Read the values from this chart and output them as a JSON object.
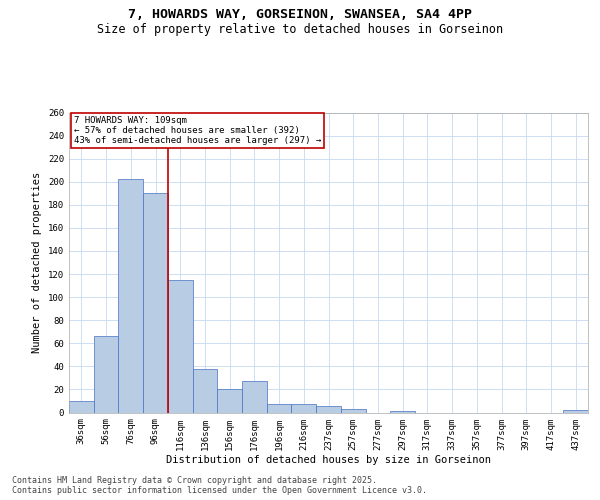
{
  "title_line1": "7, HOWARDS WAY, GORSEINON, SWANSEA, SA4 4PP",
  "title_line2": "Size of property relative to detached houses in Gorseinon",
  "xlabel": "Distribution of detached houses by size in Gorseinon",
  "ylabel": "Number of detached properties",
  "categories": [
    "36sqm",
    "56sqm",
    "76sqm",
    "96sqm",
    "116sqm",
    "136sqm",
    "156sqm",
    "176sqm",
    "196sqm",
    "216sqm",
    "237sqm",
    "257sqm",
    "277sqm",
    "297sqm",
    "317sqm",
    "337sqm",
    "357sqm",
    "377sqm",
    "397sqm",
    "417sqm",
    "437sqm"
  ],
  "values": [
    10,
    66,
    202,
    190,
    115,
    38,
    20,
    27,
    7,
    7,
    6,
    3,
    0,
    1,
    0,
    0,
    0,
    0,
    0,
    0,
    2
  ],
  "bar_color": "#b8cce4",
  "bar_edge_color": "#4472c4",
  "vline_x": 3.5,
  "vline_color": "#c00000",
  "annotation_text": "7 HOWARDS WAY: 109sqm\n← 57% of detached houses are smaller (392)\n43% of semi-detached houses are larger (297) →",
  "annotation_box_color": "#ffffff",
  "annotation_box_edge_color": "#c00000",
  "ylim": [
    0,
    260
  ],
  "yticks": [
    0,
    20,
    40,
    60,
    80,
    100,
    120,
    140,
    160,
    180,
    200,
    220,
    240,
    260
  ],
  "background_color": "#ffffff",
  "grid_color": "#c5d9f1",
  "footer_text": "Contains HM Land Registry data © Crown copyright and database right 2025.\nContains public sector information licensed under the Open Government Licence v3.0.",
  "title_fontsize": 9.5,
  "subtitle_fontsize": 8.5,
  "axis_label_fontsize": 7.5,
  "tick_fontsize": 6.5,
  "annotation_fontsize": 6.5,
  "footer_fontsize": 6
}
